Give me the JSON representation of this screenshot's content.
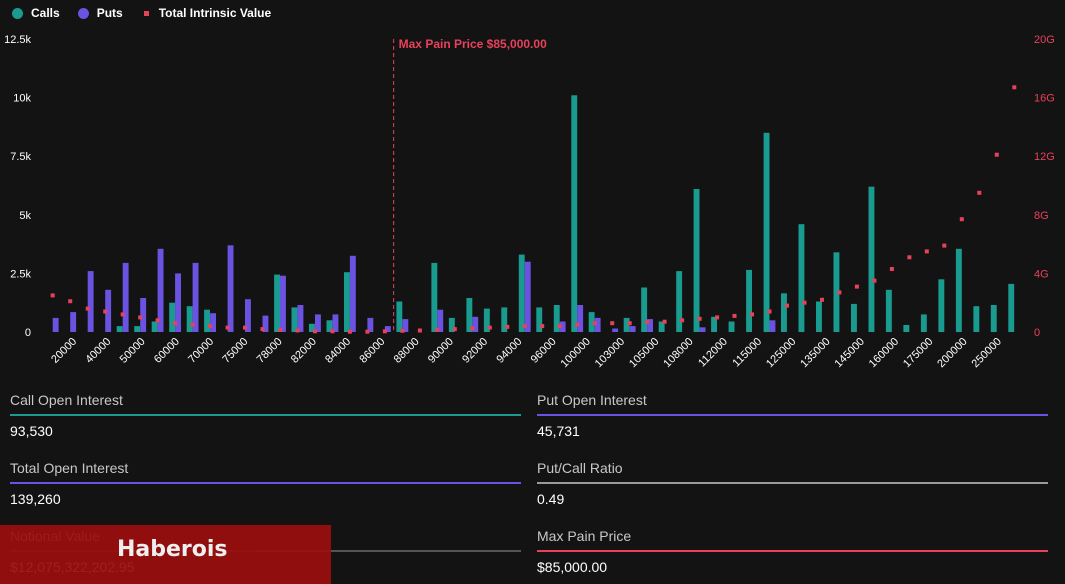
{
  "legend": {
    "calls": "Calls",
    "puts": "Puts",
    "tiv": "Total Intrinsic Value"
  },
  "colors": {
    "calls": "#1a9b8f",
    "puts": "#6b52e0",
    "tiv": "#e8415a",
    "max_pain": "#e8415a",
    "text": "#ffffff",
    "axis_right": "#e8415a"
  },
  "chart_data": {
    "type": "bar",
    "annotation": "Max Pain Price $85,000.00",
    "annotation_strike_index": 19.5,
    "y_left": {
      "ticks": [
        "0",
        "2.5k",
        "5k",
        "7.5k",
        "10k",
        "12.5k"
      ],
      "max": 12500
    },
    "y_right": {
      "ticks": [
        "0",
        "4G",
        "8G",
        "12G",
        "16G",
        "20G"
      ],
      "max": 20
    },
    "xtick_labels": [
      "20000",
      "40000",
      "50000",
      "60000",
      "70000",
      "75000",
      "78000",
      "82000",
      "84000",
      "86000",
      "88000",
      "90000",
      "92000",
      "94000",
      "96000",
      "100000",
      "103000",
      "105000",
      "108000",
      "112000",
      "115000",
      "125000",
      "135000",
      "145000",
      "160000",
      "175000",
      "200000",
      "250000"
    ],
    "calls": [
      0,
      0,
      0,
      0,
      250,
      250,
      450,
      1250,
      1100,
      950,
      0,
      0,
      0,
      2450,
      1050,
      350,
      500,
      2550,
      0,
      0,
      1300,
      0,
      2950,
      600,
      1450,
      1000,
      1050,
      3300,
      1050,
      1150,
      10100,
      850,
      0,
      600,
      1900,
      450,
      2600,
      6100,
      650,
      450,
      2650,
      8500,
      1650,
      4600,
      1300,
      3400,
      1200,
      6200,
      1800,
      300,
      750,
      2250,
      3550,
      1100,
      1150,
      2050
    ],
    "puts": [
      600,
      850,
      2600,
      1800,
      2950,
      1450,
      3550,
      2500,
      2950,
      800,
      3700,
      1400,
      700,
      2400,
      1150,
      750,
      750,
      3250,
      600,
      250,
      550,
      0,
      950,
      0,
      650,
      0,
      0,
      3000,
      0,
      450,
      1150,
      600,
      150,
      250,
      550,
      0,
      0,
      200,
      0,
      0,
      0,
      500,
      0,
      0,
      0,
      0,
      0,
      0,
      0,
      0,
      0,
      0,
      0,
      0,
      0,
      0
    ],
    "tiv_billions": [
      2.5,
      2.1,
      1.6,
      1.4,
      1.2,
      1.0,
      0.8,
      0.6,
      0.5,
      0.4,
      0.3,
      0.3,
      0.2,
      0.15,
      0.1,
      0.05,
      0.05,
      0.02,
      0.02,
      0.05,
      0.08,
      0.1,
      0.15,
      0.2,
      0.25,
      0.3,
      0.35,
      0.4,
      0.4,
      0.4,
      0.5,
      0.6,
      0.6,
      0.6,
      0.7,
      0.7,
      0.8,
      0.9,
      1.0,
      1.1,
      1.2,
      1.4,
      1.8,
      2.0,
      2.2,
      2.7,
      3.1,
      3.5,
      4.3,
      5.1,
      5.5,
      5.9,
      7.7,
      9.5,
      12.1,
      16.7
    ]
  },
  "stats": {
    "call_oi": {
      "label": "Call Open Interest",
      "value": "93,530"
    },
    "put_oi": {
      "label": "Put Open Interest",
      "value": "45,731"
    },
    "total_oi": {
      "label": "Total Open Interest",
      "value": "139,260"
    },
    "pc_ratio": {
      "label": "Put/Call Ratio",
      "value": "0.49"
    },
    "notional": {
      "label": "Notional Value",
      "value": "$12,075,322,202.95"
    },
    "max_pain": {
      "label": "Max Pain Price",
      "value": "$85,000.00"
    }
  },
  "watermark": {
    "text": "Haberois"
  }
}
